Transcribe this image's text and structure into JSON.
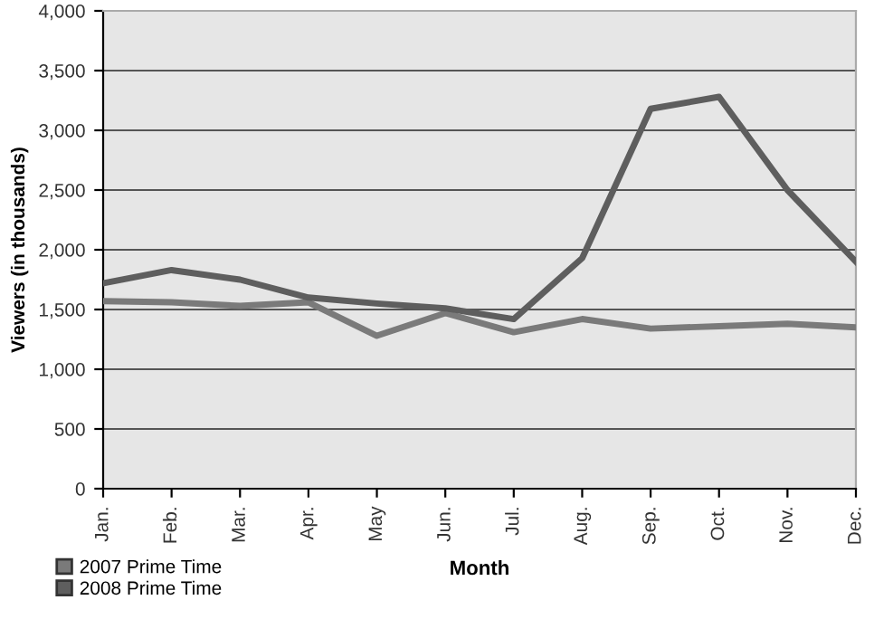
{
  "chart_data": {
    "type": "line",
    "xlabel": "Month",
    "ylabel": "Viewers (in thousands)",
    "categories": [
      "Jan.",
      "Feb.",
      "Mar.",
      "Apr.",
      "May",
      "Jun.",
      "Jul.",
      "Aug.",
      "Sep.",
      "Oct.",
      "Nov.",
      "Dec."
    ],
    "series": [
      {
        "name": "2007 Prime Time",
        "color": "#7a7a7a",
        "values": [
          1570,
          1560,
          1530,
          1560,
          1280,
          1470,
          1310,
          1420,
          1340,
          1360,
          1380,
          1350
        ]
      },
      {
        "name": "2008 Prime Time",
        "color": "#5e5e5e",
        "values": [
          1720,
          1830,
          1750,
          1600,
          1550,
          1510,
          1420,
          1930,
          3180,
          3280,
          2500,
          1900
        ]
      }
    ],
    "ylim": [
      0,
      4000
    ],
    "yticks": [
      {
        "value": 0,
        "label": "0"
      },
      {
        "value": 500,
        "label": "500"
      },
      {
        "value": 1000,
        "label": "1,000"
      },
      {
        "value": 1500,
        "label": "1,500"
      },
      {
        "value": 2000,
        "label": "2,000"
      },
      {
        "value": 2500,
        "label": "2,500"
      },
      {
        "value": 3000,
        "label": "3,000"
      },
      {
        "value": 3500,
        "label": "3,500"
      },
      {
        "value": 4000,
        "label": "4,000"
      }
    ],
    "grid": "y",
    "legend": "bottom left",
    "marker": "none",
    "line_style": "solid"
  }
}
